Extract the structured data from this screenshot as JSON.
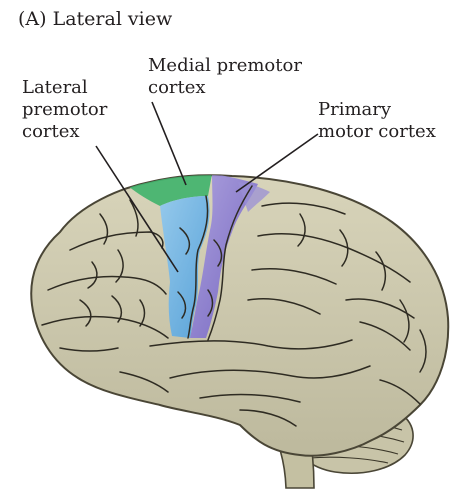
{
  "panel_title": "(A)  Lateral view",
  "labels": {
    "lateral_premotor": [
      "Lateral",
      "premotor",
      "cortex"
    ],
    "medial_premotor": [
      "Medial premotor",
      "cortex"
    ],
    "primary_motor": [
      "Primary",
      "motor cortex"
    ]
  },
  "colors": {
    "brain_fill": "#cfcbb0",
    "brain_outline": "#4a4636",
    "sulcus": "#2e2b22",
    "lateral_premotor": "#6fb4e8",
    "medial_premotor": "#3fb36b",
    "primary_motor": "#8a7bd1",
    "leader_line": "#231f20"
  }
}
